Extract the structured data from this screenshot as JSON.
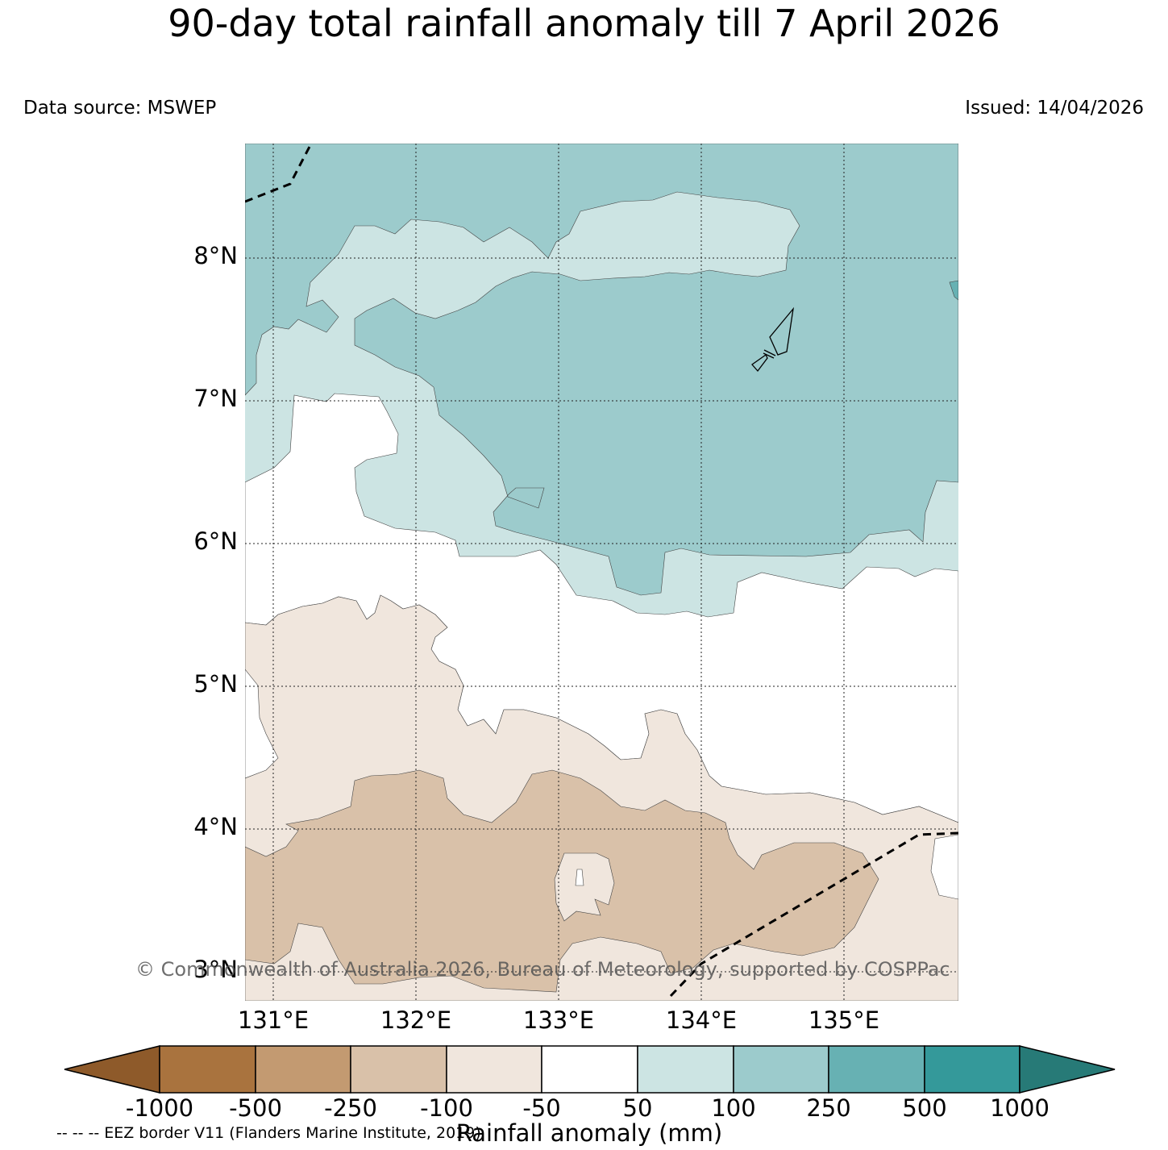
{
  "title": "90-day total rainfall anomaly till 7 April 2026",
  "data_source": "Data source: MSWEP",
  "issued": "Issued: 14/04/2026",
  "lat_labels": [
    "8°N",
    "7°N",
    "6°N",
    "5°N",
    "4°N",
    "3°N"
  ],
  "lon_labels": [
    "131°E",
    "132°E",
    "133°E",
    "134°E",
    "135°E"
  ],
  "colorbar": {
    "title": "Rainfall anomaly (mm)",
    "ticks": [
      "-1000",
      "-500",
      "-250",
      "-100",
      "-50",
      "50",
      "100",
      "250",
      "500",
      "1000"
    ],
    "colors": [
      "#8e5a2a",
      "#a9733e",
      "#c39a71",
      "#d9c1a9",
      "#f0e6dd",
      "#ffffff",
      "#cce4e3",
      "#9ccbcc",
      "#67b1b3",
      "#34999a",
      "#277a77"
    ]
  },
  "eez_note": "-- -- -- EEZ border V11 (Flanders Marine Institute, 2019)",
  "copyright": "© Commonwealth of Australia 2026, Bureau of Meteorology, supported by COSPPac",
  "map_extent": {
    "lon_min": 130.8,
    "lon_max": 135.8,
    "lat_min": 2.8,
    "lat_max": 8.8
  },
  "gridlines": {
    "lons": [
      131,
      132,
      133,
      134,
      135
    ],
    "lats": [
      3,
      4,
      5,
      6,
      7,
      8
    ]
  }
}
